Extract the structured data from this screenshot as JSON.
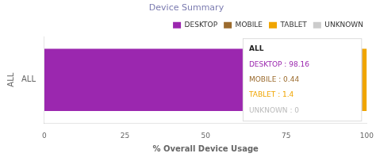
{
  "chart_data": {
    "type": "bar",
    "orientation": "horizontal",
    "stacked": true,
    "title": "Device Summary",
    "xlabel": "% Overall Device Usage",
    "ylabel": "ALL",
    "categories": [
      "ALL"
    ],
    "series": [
      {
        "name": "DESKTOP",
        "color": "#9B27AF",
        "values": [
          98.16
        ]
      },
      {
        "name": "MOBILE",
        "color": "#9B6B2E",
        "values": [
          0.44
        ]
      },
      {
        "name": "TABLET",
        "color": "#F0A500",
        "values": [
          1.4
        ]
      },
      {
        "name": "UNKNOWN",
        "color": "#CCCCCC",
        "values": [
          0.0
        ]
      }
    ],
    "xlim": [
      0,
      100
    ],
    "xticks": [
      0,
      25,
      50,
      75,
      100
    ],
    "grid": false,
    "legend": "upper right",
    "annotations": [
      {
        "text": "ALL"
      },
      {
        "text": "DESKTOP : 98.16",
        "color": "#9B27AF"
      },
      {
        "text": "MOBILE : 0.44",
        "color": "#9B6B2E"
      },
      {
        "text": "TABLET : 1.4",
        "color": "#F0A500"
      },
      {
        "text": "UNKNOWN : 0",
        "color": "#BBBBBB"
      }
    ]
  }
}
